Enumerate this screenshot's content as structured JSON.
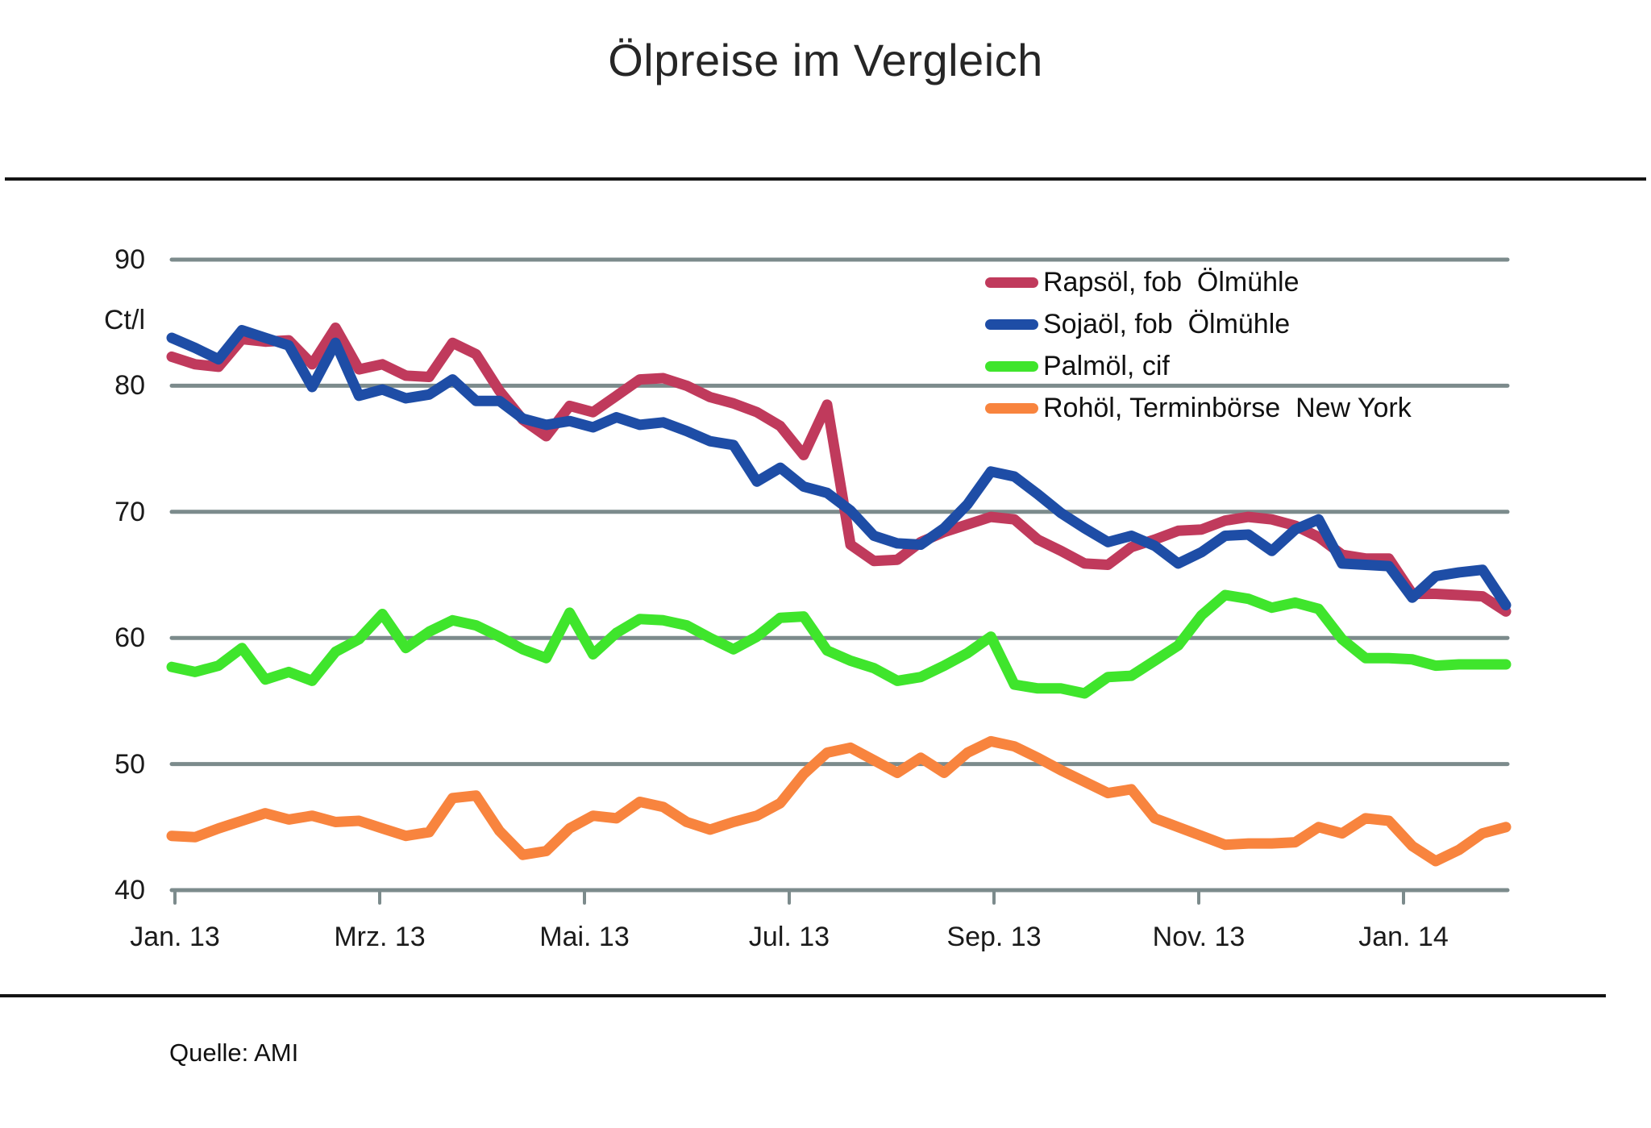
{
  "title": "Ölpreise im Vergleich",
  "source": "Quelle: AMI",
  "colors": {
    "gridline": "#7C8B8C",
    "axis": "#7C8B8C",
    "rule": "#141414",
    "text": "#1A1A1A",
    "rapsoel": "#C03A5C",
    "sojaoel": "#1E4DA6",
    "palmoel": "#3FE52C",
    "rohoel": "#F8843E"
  },
  "chart_data": {
    "type": "line",
    "title": "Ölpreise im Vergleich",
    "ylabel": "Ct/l",
    "xlabel": "",
    "ylim": [
      40,
      90
    ],
    "yticks": [
      40,
      50,
      60,
      70,
      80,
      90
    ],
    "grid": "horizontal",
    "legend_position": "top-right",
    "x_unit": "weekly, Jan 2013 - Feb 2014",
    "x_tick_labels": [
      "Jan. 13",
      "Mrz. 13",
      "Mai. 13",
      "Jul. 13",
      "Sep. 13",
      "Nov. 13",
      "Jan. 14"
    ],
    "series": [
      {
        "name": "Rapsöl, fob  Ölmühle",
        "color": "#C03A5C",
        "values": [
          82.3,
          81.7,
          81.5,
          83.7,
          83.5,
          83.6,
          81.7,
          84.6,
          81.3,
          81.7,
          80.8,
          80.7,
          83.4,
          82.5,
          79.6,
          77.3,
          76.0,
          78.4,
          77.9,
          79.2,
          80.5,
          80.6,
          80.0,
          79.1,
          78.6,
          77.9,
          76.8,
          74.5,
          78.5,
          67.4,
          66.1,
          66.2,
          67.6,
          68.4,
          69.0,
          69.6,
          69.4,
          67.8,
          66.9,
          65.9,
          65.8,
          67.2,
          67.8,
          68.5,
          68.6,
          69.3,
          69.6,
          69.4,
          68.9,
          68.0,
          66.6,
          66.3,
          66.3,
          63.5,
          63.5,
          63.4,
          63.3,
          62.1
        ]
      },
      {
        "name": "Sojaöl, fob  Ölmühle",
        "color": "#1E4DA6",
        "values": [
          83.8,
          83.0,
          82.1,
          84.4,
          83.8,
          83.2,
          79.9,
          83.4,
          79.2,
          79.7,
          79.0,
          79.3,
          80.5,
          78.8,
          78.8,
          77.4,
          76.9,
          77.2,
          76.7,
          77.5,
          76.9,
          77.1,
          76.4,
          75.6,
          75.3,
          72.4,
          73.5,
          72.0,
          71.5,
          70.1,
          68.1,
          67.5,
          67.4,
          68.7,
          70.6,
          73.2,
          72.8,
          71.4,
          69.9,
          68.7,
          67.6,
          68.1,
          67.3,
          65.9,
          66.8,
          68.1,
          68.2,
          66.9,
          68.6,
          69.4,
          65.9,
          65.8,
          65.7,
          63.2,
          64.9,
          65.2,
          65.4,
          62.6
        ]
      },
      {
        "name": "Palmöl, cif",
        "color": "#3FE52C",
        "values": [
          57.7,
          57.3,
          57.8,
          59.2,
          56.7,
          57.3,
          56.6,
          58.9,
          59.9,
          61.9,
          59.2,
          60.5,
          61.4,
          61.0,
          60.1,
          59.1,
          58.4,
          62.0,
          58.7,
          60.4,
          61.5,
          61.4,
          61.0,
          60.0,
          59.1,
          60.1,
          61.6,
          61.7,
          59.0,
          58.2,
          57.6,
          56.6,
          56.9,
          57.8,
          58.8,
          60.1,
          56.3,
          56.0,
          56.0,
          55.6,
          56.9,
          57.0,
          58.2,
          59.4,
          61.8,
          63.4,
          63.1,
          62.4,
          62.8,
          62.3,
          59.9,
          58.4,
          58.4,
          58.3,
          57.8,
          57.9,
          57.9,
          57.9
        ]
      },
      {
        "name": "Rohöl, Terminbörse  New York",
        "color": "#F8843E",
        "values": [
          44.3,
          44.2,
          44.9,
          45.5,
          46.1,
          45.6,
          45.9,
          45.4,
          45.5,
          44.9,
          44.3,
          44.6,
          47.3,
          47.5,
          44.7,
          42.8,
          43.1,
          44.9,
          45.9,
          45.7,
          47.0,
          46.6,
          45.4,
          44.8,
          45.4,
          45.9,
          46.9,
          49.2,
          50.9,
          51.3,
          50.3,
          49.3,
          50.5,
          49.3,
          50.9,
          51.8,
          51.4,
          50.5,
          49.5,
          48.6,
          47.7,
          48.0,
          45.7,
          45.0,
          44.3,
          43.6,
          43.7,
          43.7,
          43.8,
          45.0,
          44.5,
          45.7,
          45.5,
          43.5,
          42.3,
          43.2,
          44.5,
          45.0
        ]
      }
    ]
  }
}
